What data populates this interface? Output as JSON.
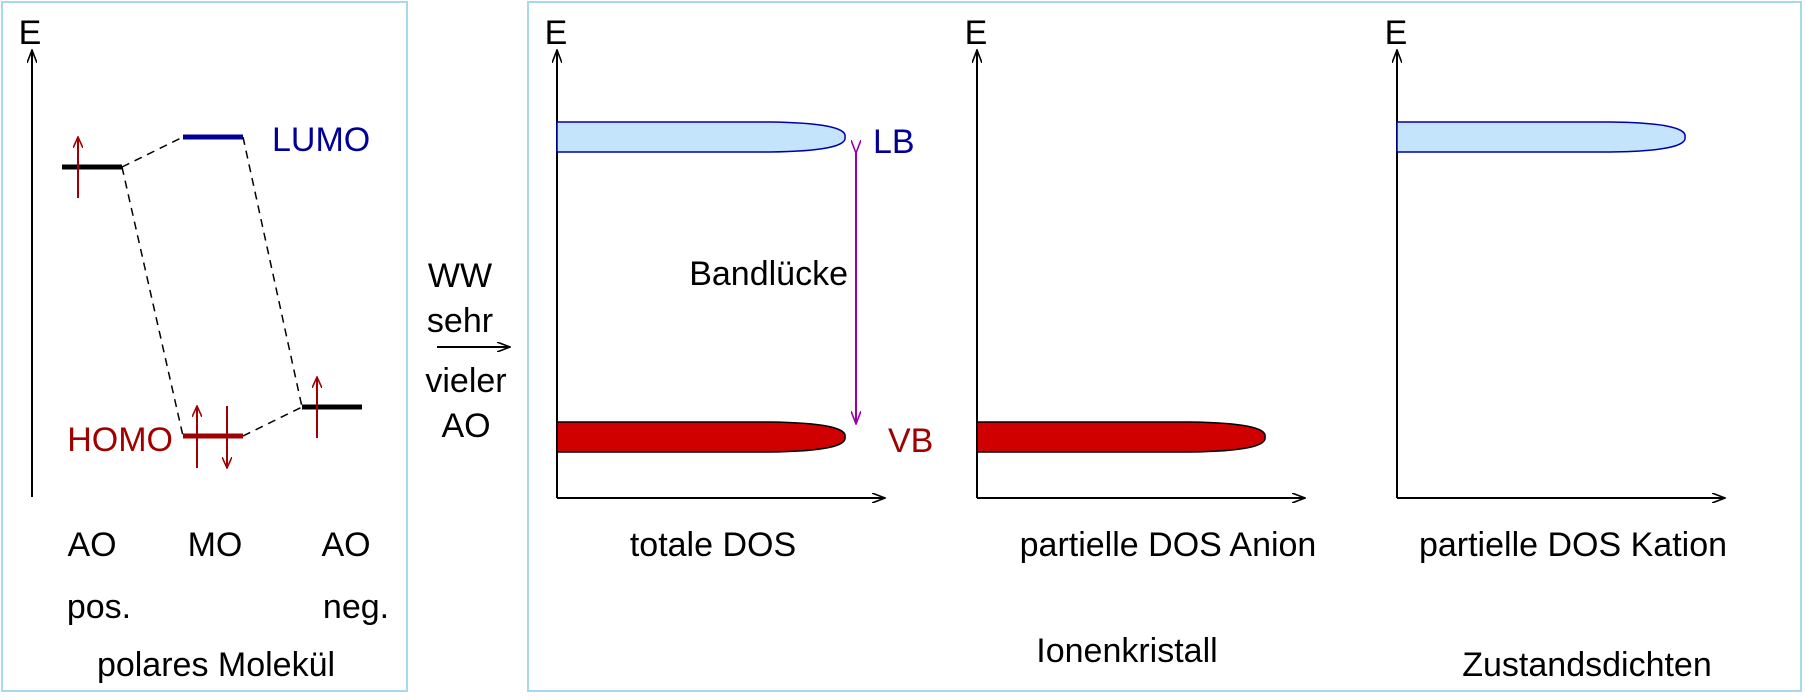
{
  "colors": {
    "frame": "#a8d8ec",
    "black": "#000000",
    "homo_red": "#a00000",
    "lumo_blue": "#000099",
    "vb_fill": "#d10000",
    "lb_fill": "#c4e4fb",
    "lb_stroke": "#0000aa",
    "gap_arrow": "#9900aa"
  },
  "molecule_panel": {
    "axis_label": "E",
    "lumo_label": "LUMO",
    "homo_label": "HOMO",
    "col_ao_left": "AO",
    "col_mo": "MO",
    "col_ao_right": "AO",
    "sub_pos": "pos.",
    "sub_neg": "neg.",
    "caption": "polares Molekül"
  },
  "interaction": {
    "line1": "WW",
    "line2": "sehr",
    "line3": "vieler",
    "line4": "AO"
  },
  "crystal_panel": {
    "total": {
      "axis_label": "E",
      "lb_label": "LB",
      "vb_label": "VB",
      "gap_label": "Bandlücke",
      "caption": "totale DOS"
    },
    "anion": {
      "axis_label": "E",
      "caption": "partielle DOS Anion"
    },
    "cation": {
      "axis_label": "E",
      "caption": "partielle DOS Kation"
    },
    "caption_crystal": "Ionenkristall",
    "caption_dos": "Zustandsdichten"
  }
}
